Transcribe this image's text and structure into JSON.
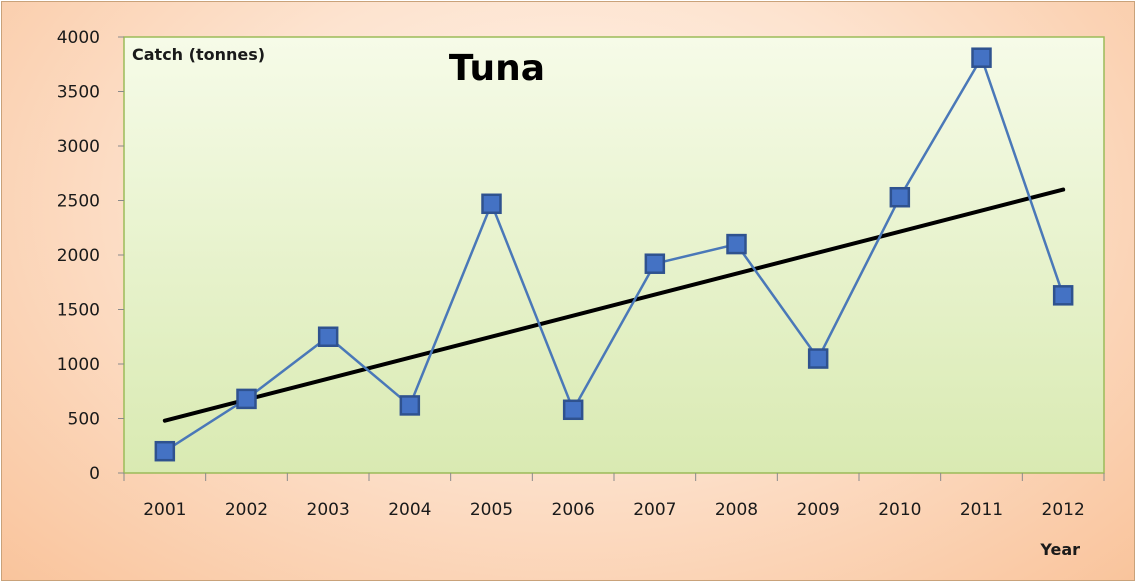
{
  "chart_data": {
    "type": "line",
    "title": "Tuna",
    "ylabel": "Catch (tonnes)",
    "xlabel": "Year",
    "categories": [
      "2001",
      "2002",
      "2003",
      "2004",
      "2005",
      "2006",
      "2007",
      "2008",
      "2009",
      "2010",
      "2011",
      "2012"
    ],
    "series": [
      {
        "values": [
          200,
          680,
          1250,
          620,
          2470,
          580,
          1920,
          2100,
          1050,
          2530,
          3810,
          1630
        ],
        "color": "#4472c4",
        "marker": "square"
      }
    ],
    "trendline": {
      "type": "linear",
      "start": 480,
      "end": 2600,
      "color": "#000000"
    },
    "ylim": [
      0,
      4000
    ],
    "yticks": [
      "0",
      "500",
      "1000",
      "1500",
      "2000",
      "2500",
      "3000",
      "3500",
      "4000"
    ],
    "grid": false,
    "legend": "none",
    "colors": {
      "plot_background": "#eef6d8",
      "outer_background": "#fbd3b3",
      "plot_border": "#9bbb59"
    }
  }
}
